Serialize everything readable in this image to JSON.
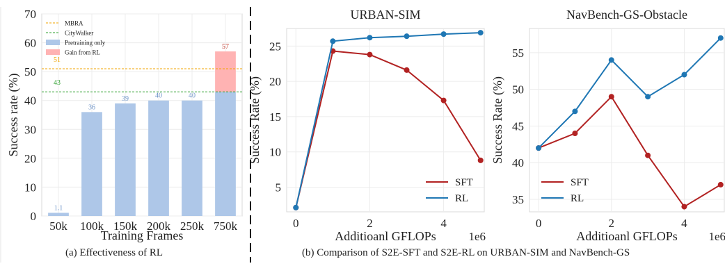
{
  "captions": {
    "a": "(a) Effectiveness of RL",
    "b": "(b) Comparison of S2E-SFT and S2E-RL on URBAN-SIM and NavBench-GS"
  },
  "chart_data": [
    {
      "id": "panel-a",
      "type": "bar",
      "title": "",
      "xlabel": "Training Frames",
      "ylabel": "Success rate (%)",
      "ylim": [
        0,
        70
      ],
      "yticks": [
        0,
        10,
        20,
        30,
        40,
        50,
        60,
        70
      ],
      "categories": [
        "50k",
        "100k",
        "150k",
        "200k",
        "250k",
        "750k"
      ],
      "series": [
        {
          "name": "Pretraining only",
          "values": [
            1.1,
            36,
            39,
            40,
            40,
            43
          ],
          "labels": [
            "1.1",
            "36",
            "39",
            "40",
            "40",
            "43"
          ],
          "color": "#aec7e8"
        },
        {
          "name": "Gain from RL",
          "values": [
            0,
            0,
            0,
            0,
            0,
            14
          ],
          "total_labels": [
            "",
            "",
            "",
            "",
            "",
            "57"
          ],
          "color": "#ffb3b3",
          "label_color": "#c0392b"
        }
      ],
      "reference_lines": [
        {
          "name": "MBRA",
          "value": 51,
          "label": "51",
          "color": "#f0a500"
        },
        {
          "name": "CityWalker",
          "value": 43,
          "label": "43",
          "color": "#2ca02c"
        }
      ],
      "legend_position": "top-left",
      "grid": true
    },
    {
      "id": "panel-b1",
      "type": "line",
      "title": "URBAN-SIM",
      "xlabel": "Additioanl GFLOPs",
      "ylabel": "Success Rate (%)",
      "x_scale_label": "1e6",
      "xlim": [
        -0.25,
        5.1
      ],
      "ylim": [
        1.5,
        27.5
      ],
      "xticks": [
        0,
        2,
        4
      ],
      "yticks": [
        5,
        10,
        15,
        20,
        25
      ],
      "x": [
        0,
        1,
        2,
        3,
        4,
        5
      ],
      "series": [
        {
          "name": "SFT",
          "values": [
            2.1,
            24.3,
            23.8,
            21.6,
            17.3,
            8.8
          ],
          "color": "#b22222"
        },
        {
          "name": "RL",
          "values": [
            2.1,
            25.7,
            26.2,
            26.4,
            26.7,
            26.9
          ],
          "color": "#1f77b4"
        }
      ],
      "legend_position": "bottom-right",
      "grid": true
    },
    {
      "id": "panel-b2",
      "type": "line",
      "title": "NavBench-GS-Obstacle",
      "xlabel": "Additioanl GFLOPs",
      "ylabel": "Success Rate (%)",
      "x_scale_label": "1e6",
      "xlim": [
        -0.25,
        5.1
      ],
      "ylim": [
        33.3,
        58.3
      ],
      "xticks": [
        0,
        2,
        4
      ],
      "yticks": [
        35,
        40,
        45,
        50,
        55
      ],
      "x": [
        0,
        1,
        2,
        3,
        4,
        5
      ],
      "series": [
        {
          "name": "SFT",
          "values": [
            42,
            44,
            49,
            41,
            34,
            37
          ],
          "color": "#b22222"
        },
        {
          "name": "RL",
          "values": [
            42,
            47,
            54,
            49,
            52,
            57
          ],
          "color": "#1f77b4"
        }
      ],
      "legend_position": "bottom-left",
      "grid": true
    }
  ]
}
